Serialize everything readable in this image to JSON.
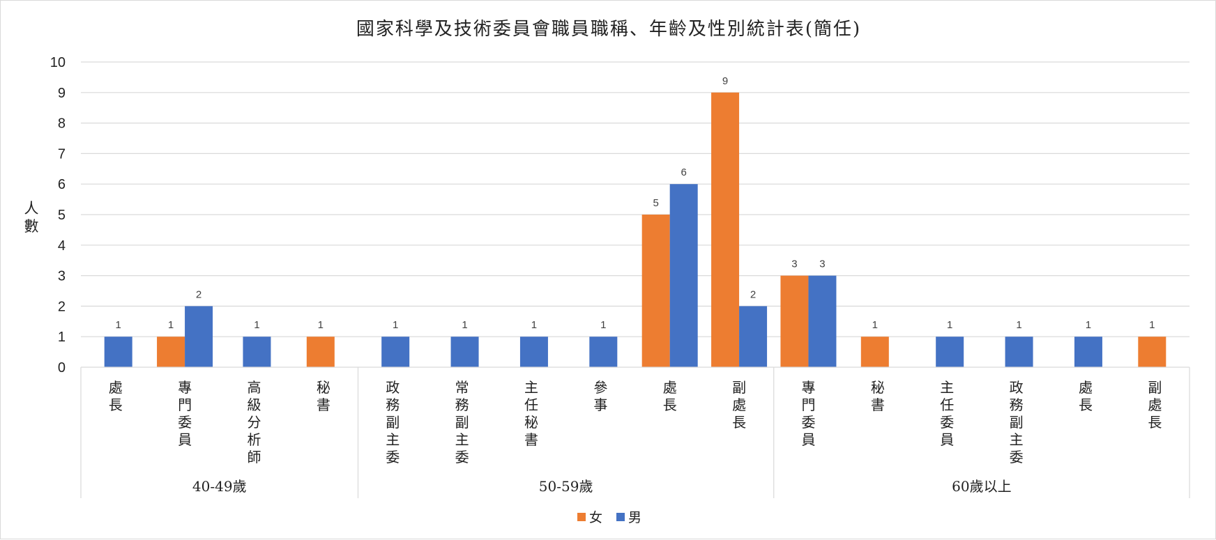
{
  "chart_data": {
    "type": "bar",
    "title": "國家科學及技術委員會職員職稱、年齡及性別統計表(簡任)",
    "ylabel": "人數",
    "xlabel": "",
    "ylim": [
      0,
      10
    ],
    "yticks": [
      0,
      1,
      2,
      3,
      4,
      5,
      6,
      7,
      8,
      9,
      10
    ],
    "grid": true,
    "legend_position": "bottom",
    "groups": [
      {
        "name": "40-49歲",
        "categories": [
          "處長",
          "專門委員",
          "高級分析師",
          "秘書"
        ]
      },
      {
        "name": "50-59歲",
        "categories": [
          "政務副主委",
          "常務副主委",
          "主任秘書",
          "參事",
          "處長",
          "副處長"
        ]
      },
      {
        "name": "60歲以上",
        "categories": [
          "專門委員",
          "秘書",
          "主任委員",
          "政務副主委",
          "處長",
          "副處長"
        ]
      }
    ],
    "series": [
      {
        "name": "女",
        "color": "#ED7D31",
        "values": [
          null,
          1,
          null,
          1,
          null,
          null,
          null,
          null,
          5,
          9,
          3,
          1,
          null,
          null,
          null,
          1
        ]
      },
      {
        "name": "男",
        "color": "#4472C4",
        "values": [
          1,
          2,
          1,
          null,
          1,
          1,
          1,
          1,
          6,
          2,
          3,
          null,
          1,
          1,
          1,
          null
        ]
      }
    ]
  }
}
